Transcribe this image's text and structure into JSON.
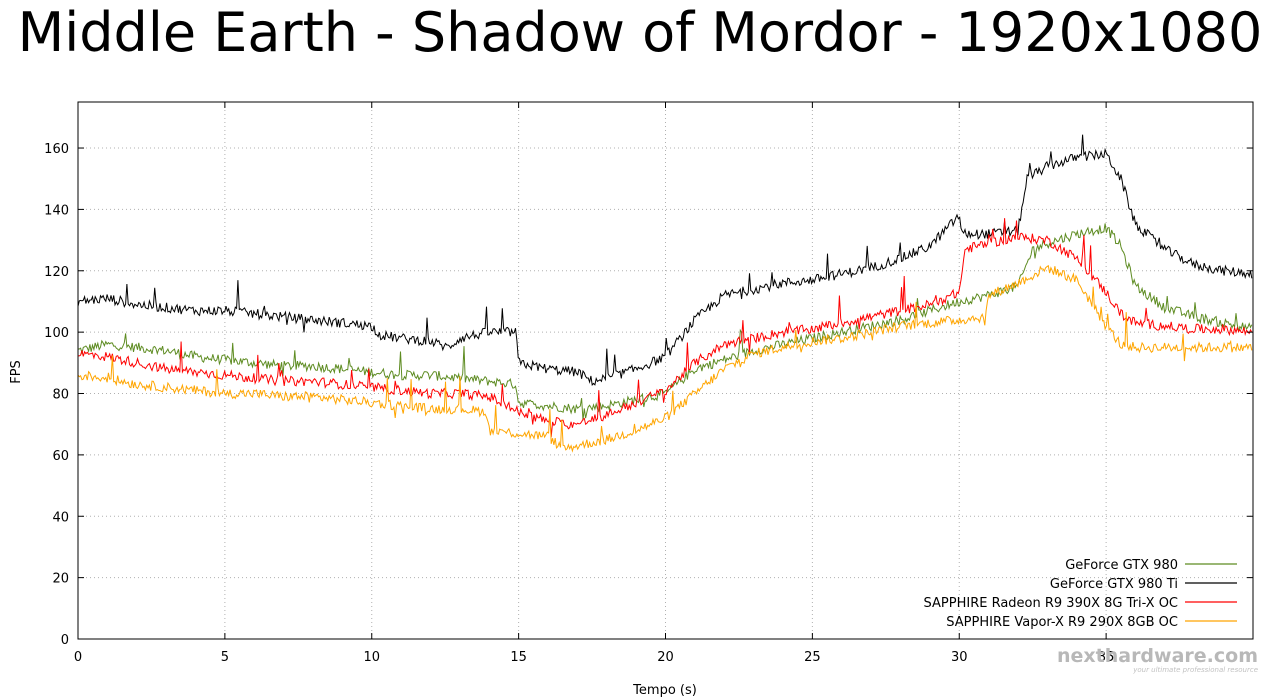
{
  "chart_data": {
    "type": "line",
    "title": "Middle Earth - Shadow of Mordor - 1920x1080",
    "xlabel": "Tempo (s)",
    "ylabel": "FPS",
    "xlim": [
      0,
      40
    ],
    "ylim": [
      0,
      175
    ],
    "x_ticks": [
      0,
      5,
      10,
      15,
      20,
      25,
      30,
      35
    ],
    "y_ticks": [
      0,
      20,
      40,
      60,
      80,
      100,
      120,
      140,
      160
    ],
    "grid": true,
    "legend_position": "bottom-right",
    "series": [
      {
        "name": "GeForce GTX 980",
        "color": "#5e8c22",
        "points": [
          [
            0,
            94
          ],
          [
            1,
            96
          ],
          [
            2,
            95
          ],
          [
            3,
            94
          ],
          [
            4,
            92
          ],
          [
            5,
            91
          ],
          [
            6,
            90
          ],
          [
            7,
            89
          ],
          [
            8,
            89
          ],
          [
            9,
            88
          ],
          [
            10,
            87
          ],
          [
            11,
            86
          ],
          [
            12,
            86
          ],
          [
            13,
            85
          ],
          [
            14,
            84
          ],
          [
            14.9,
            83
          ],
          [
            15,
            77
          ],
          [
            16,
            76
          ],
          [
            17,
            75
          ],
          [
            18,
            76
          ],
          [
            19,
            78
          ],
          [
            20,
            80
          ],
          [
            20.5,
            84
          ],
          [
            21,
            88
          ],
          [
            22,
            91
          ],
          [
            23,
            94
          ],
          [
            24,
            96
          ],
          [
            25,
            98
          ],
          [
            26,
            100
          ],
          [
            27,
            102
          ],
          [
            28,
            104
          ],
          [
            29,
            107
          ],
          [
            30,
            110
          ],
          [
            31,
            112
          ],
          [
            32,
            115
          ],
          [
            32.5,
            127
          ],
          [
            33,
            129
          ],
          [
            34,
            132
          ],
          [
            35,
            134
          ],
          [
            35.5,
            128
          ],
          [
            36,
            115
          ],
          [
            37,
            108
          ],
          [
            38,
            105
          ],
          [
            39,
            103
          ],
          [
            40,
            101
          ]
        ]
      },
      {
        "name": "GeForce GTX 980 Ti",
        "color": "#000000",
        "points": [
          [
            0,
            110
          ],
          [
            1,
            111
          ],
          [
            2,
            109
          ],
          [
            3,
            108
          ],
          [
            4,
            107
          ],
          [
            5,
            107
          ],
          [
            6,
            106
          ],
          [
            7,
            105
          ],
          [
            8,
            104
          ],
          [
            9,
            103
          ],
          [
            10,
            102
          ],
          [
            10.3,
            99
          ],
          [
            11,
            98
          ],
          [
            12,
            97
          ],
          [
            12.6,
            95
          ],
          [
            13,
            98
          ],
          [
            14,
            100
          ],
          [
            14.9,
            100
          ],
          [
            15,
            90
          ],
          [
            16,
            88
          ],
          [
            17,
            87
          ],
          [
            17.5,
            84
          ],
          [
            18,
            85
          ],
          [
            19,
            88
          ],
          [
            20,
            92
          ],
          [
            20.5,
            98
          ],
          [
            21,
            104
          ],
          [
            22,
            112
          ],
          [
            23,
            114
          ],
          [
            24,
            116
          ],
          [
            25,
            117
          ],
          [
            26,
            119
          ],
          [
            27,
            121
          ],
          [
            28,
            124
          ],
          [
            29,
            128
          ],
          [
            30,
            138
          ],
          [
            30.1,
            132
          ],
          [
            31,
            132
          ],
          [
            32,
            133
          ],
          [
            32.3,
            150
          ],
          [
            33,
            154
          ],
          [
            34,
            157
          ],
          [
            35,
            158
          ],
          [
            35.5,
            150
          ],
          [
            36,
            135
          ],
          [
            37,
            127
          ],
          [
            38,
            122
          ],
          [
            39,
            120
          ],
          [
            40,
            119
          ]
        ]
      },
      {
        "name": "SAPPHIRE Radeon R9 390X 8G Tri-X OC",
        "color": "#ff0000",
        "points": [
          [
            0,
            93
          ],
          [
            1,
            92
          ],
          [
            2,
            90
          ],
          [
            3,
            88
          ],
          [
            4,
            87
          ],
          [
            5,
            86
          ],
          [
            6,
            85
          ],
          [
            7,
            84
          ],
          [
            8,
            84
          ],
          [
            9,
            83
          ],
          [
            10,
            82
          ],
          [
            11,
            81
          ],
          [
            12,
            80
          ],
          [
            13,
            80
          ],
          [
            14,
            79
          ],
          [
            15,
            74
          ],
          [
            16,
            71
          ],
          [
            17,
            70
          ],
          [
            18,
            73
          ],
          [
            19,
            77
          ],
          [
            20,
            81
          ],
          [
            21,
            90
          ],
          [
            22,
            96
          ],
          [
            23,
            98
          ],
          [
            24,
            100
          ],
          [
            25,
            101
          ],
          [
            26,
            103
          ],
          [
            27,
            105
          ],
          [
            28,
            107
          ],
          [
            29,
            109
          ],
          [
            30,
            113
          ],
          [
            30.2,
            127
          ],
          [
            31,
            129
          ],
          [
            32,
            131
          ],
          [
            33,
            130
          ],
          [
            34,
            124
          ],
          [
            35,
            113
          ],
          [
            35.5,
            106
          ],
          [
            36,
            103
          ],
          [
            37,
            102
          ],
          [
            38,
            101
          ],
          [
            39,
            101
          ],
          [
            40,
            100
          ]
        ]
      },
      {
        "name": "SAPPHIRE Vapor-X R9 290X 8GB OC",
        "color": "#ffa500",
        "points": [
          [
            0,
            86
          ],
          [
            1,
            85
          ],
          [
            2,
            83
          ],
          [
            3,
            82
          ],
          [
            4,
            81
          ],
          [
            5,
            80
          ],
          [
            6,
            80
          ],
          [
            7,
            79
          ],
          [
            8,
            79
          ],
          [
            9,
            78
          ],
          [
            10,
            77
          ],
          [
            11,
            76
          ],
          [
            12,
            75
          ],
          [
            13,
            75
          ],
          [
            13.9,
            74
          ],
          [
            14,
            68
          ],
          [
            15,
            67
          ],
          [
            16,
            66
          ],
          [
            16.5,
            62
          ],
          [
            17,
            63
          ],
          [
            18,
            65
          ],
          [
            19,
            68
          ],
          [
            20,
            72
          ],
          [
            21,
            80
          ],
          [
            22,
            88
          ],
          [
            23,
            93
          ],
          [
            24,
            95
          ],
          [
            25,
            97
          ],
          [
            26,
            98
          ],
          [
            27,
            100
          ],
          [
            28,
            102
          ],
          [
            29,
            103
          ],
          [
            30,
            104
          ],
          [
            30.9,
            105
          ],
          [
            31,
            112
          ],
          [
            32,
            116
          ],
          [
            33,
            121
          ],
          [
            34,
            117
          ],
          [
            35,
            102
          ],
          [
            35.5,
            96
          ],
          [
            36,
            95
          ],
          [
            37,
            95
          ],
          [
            38,
            95
          ],
          [
            39,
            95
          ],
          [
            40,
            95
          ]
        ]
      }
    ]
  },
  "watermark": {
    "text": "nexthardware.com",
    "tagline": "your ultimate professional resource"
  }
}
